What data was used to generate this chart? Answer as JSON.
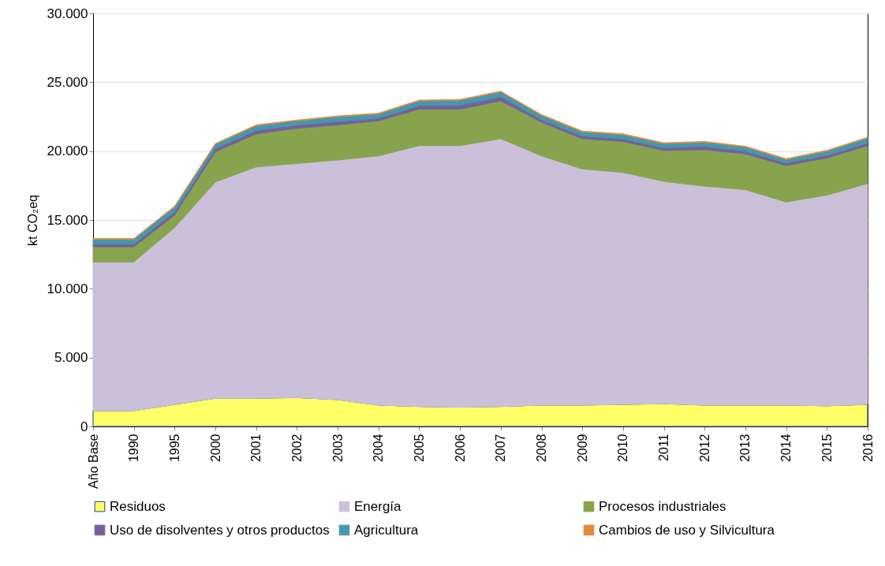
{
  "chart_data": {
    "type": "area",
    "stacked": true,
    "ylabel": "kt CO₂eq",
    "categories": [
      "Año Base",
      "1990",
      "1995",
      "2000",
      "2001",
      "2002",
      "2003",
      "2004",
      "2005",
      "2006",
      "2007",
      "2008",
      "2009",
      "2010",
      "2011",
      "2012",
      "2013",
      "2014",
      "2015",
      "2016"
    ],
    "series": [
      {
        "name": "Residuos",
        "color": "#ffff66",
        "values": [
          1150,
          1150,
          1600,
          2050,
          2050,
          2100,
          1950,
          1550,
          1450,
          1400,
          1450,
          1550,
          1550,
          1600,
          1650,
          1550,
          1550,
          1550,
          1500,
          1600
        ]
      },
      {
        "name": "Energía",
        "color": "#cbc0d9",
        "values": [
          10800,
          10800,
          12850,
          15700,
          16800,
          17000,
          17400,
          18100,
          18950,
          19000,
          19450,
          18100,
          17150,
          16850,
          16150,
          15900,
          15650,
          14750,
          15300,
          16050
        ]
      },
      {
        "name": "Procesos industriales",
        "color": "#88a34d",
        "values": [
          1100,
          1100,
          900,
          2200,
          2400,
          2550,
          2550,
          2550,
          2650,
          2650,
          2750,
          2450,
          2200,
          2250,
          2250,
          2650,
          2600,
          2650,
          2700,
          2750
        ]
      },
      {
        "name": "Uso de disolventes y otros productos",
        "color": "#77609a",
        "values": [
          200,
          200,
          250,
          250,
          250,
          250,
          250,
          200,
          250,
          300,
          300,
          200,
          200,
          200,
          200,
          250,
          200,
          200,
          200,
          200
        ]
      },
      {
        "name": "Agricultura",
        "color": "#4299b0",
        "values": [
          350,
          350,
          350,
          300,
          350,
          300,
          350,
          300,
          350,
          350,
          350,
          300,
          300,
          300,
          300,
          300,
          300,
          250,
          300,
          350
        ]
      },
      {
        "name": "Cambios de uso y Silvicultura",
        "color": "#e38b3c",
        "values": [
          50,
          50,
          50,
          50,
          50,
          50,
          50,
          50,
          50,
          50,
          50,
          50,
          50,
          50,
          50,
          50,
          50,
          50,
          50,
          50
        ]
      }
    ],
    "ylim": [
      0,
      30000
    ],
    "yticks": [
      0,
      {
        "value": 5000,
        "label": "5.000"
      },
      {
        "value": 10000,
        "label": "10.000"
      },
      {
        "value": 15000,
        "label": "15.000"
      },
      {
        "value": 20000,
        "label": "20.000"
      },
      {
        "value": 25000,
        "label": "25.000"
      },
      {
        "value": 30000,
        "label": "30.000"
      }
    ],
    "grid": "y",
    "legend": "bottom"
  }
}
